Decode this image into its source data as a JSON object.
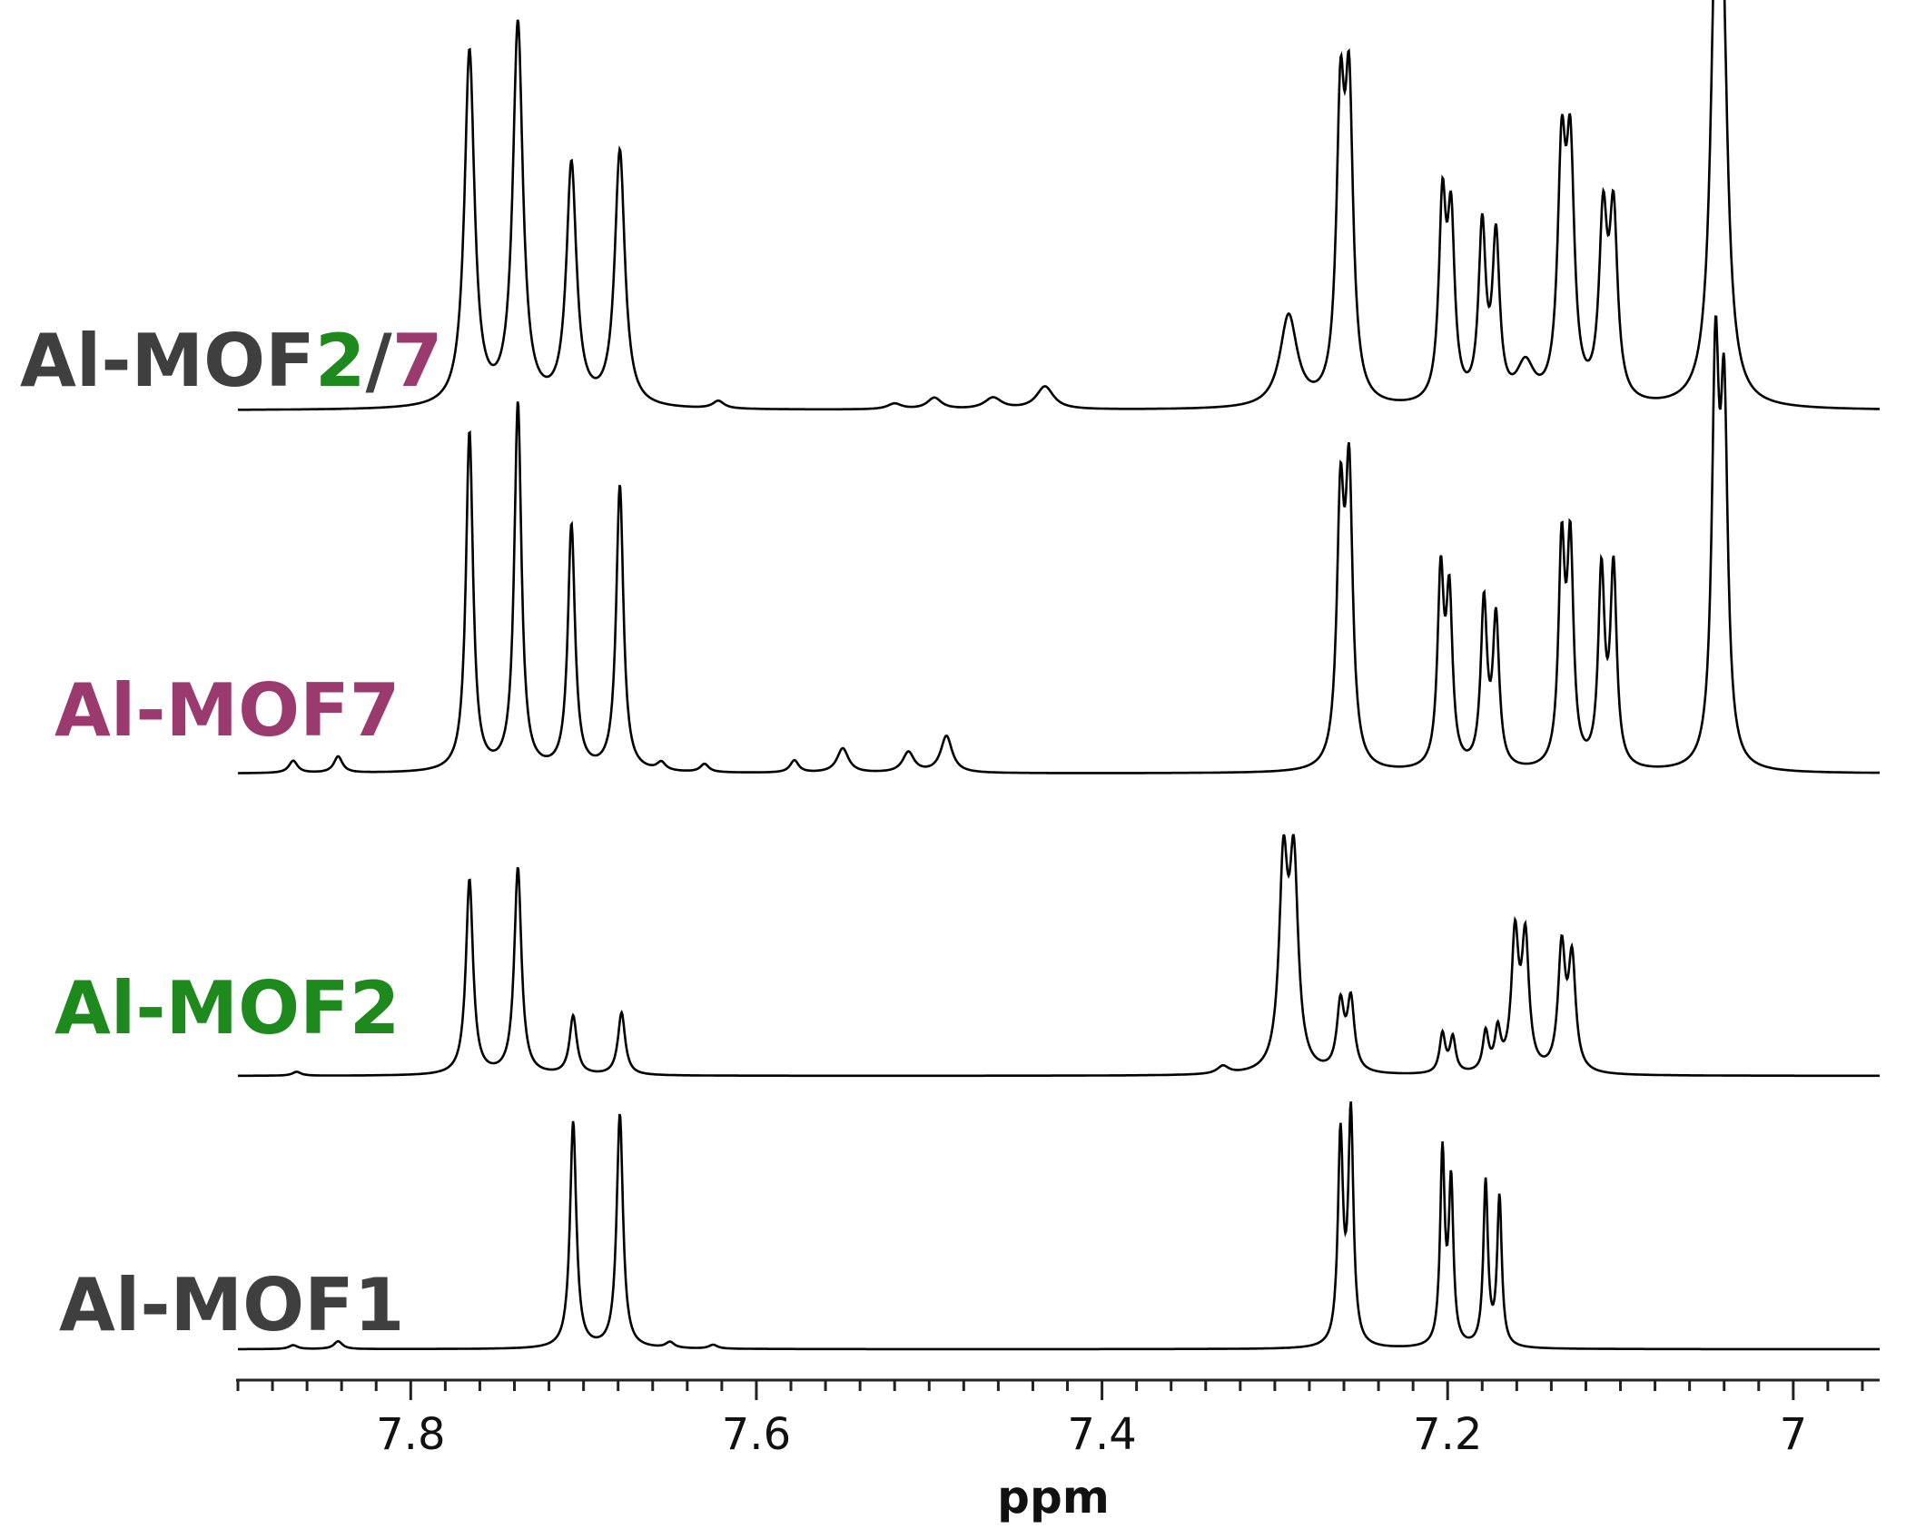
{
  "colors": {
    "dark": "#3f3f3f",
    "green": "#1e8a1e",
    "purple": "#9b3a6e",
    "trace": "#000000"
  },
  "labels": {
    "mof27_prefix": "Al-MOF",
    "mof27_a": "2",
    "mof27_sep": "/",
    "mof27_b": "7",
    "mof7": "Al-MOF7",
    "mof2": "Al-MOF2",
    "mof1": "Al-MOF1"
  },
  "chart_data": {
    "type": "line",
    "title": "",
    "xlabel": "ppm",
    "ylabel": "",
    "xlim": [
      7.9,
      6.95
    ],
    "x_reversed": true,
    "x_ticks": [
      7.8,
      7.6,
      7.4,
      7.2,
      7.0
    ],
    "x_tick_labels": [
      "7.8",
      "7.6",
      "7.4",
      "7.2",
      "7"
    ],
    "grid": false,
    "series": [
      {
        "name": "Al-MOF2/7",
        "color": "#000000",
        "peaks": [
          {
            "ppm": 7.766,
            "h": 0.93,
            "w": 0.0035
          },
          {
            "ppm": 7.738,
            "h": 1.0,
            "w": 0.0035
          },
          {
            "ppm": 7.707,
            "h": 0.63,
            "w": 0.0035
          },
          {
            "ppm": 7.679,
            "h": 0.67,
            "w": 0.0035
          },
          {
            "ppm": 7.622,
            "h": 0.02,
            "w": 0.004
          },
          {
            "ppm": 7.52,
            "h": 0.015,
            "w": 0.005
          },
          {
            "ppm": 7.497,
            "h": 0.03,
            "w": 0.005
          },
          {
            "ppm": 7.463,
            "h": 0.03,
            "w": 0.006
          },
          {
            "ppm": 7.433,
            "h": 0.06,
            "w": 0.006
          },
          {
            "ppm": 7.292,
            "h": 0.24,
            "w": 0.006
          },
          {
            "ppm": 7.262,
            "h": 0.73,
            "w": 0.0028
          },
          {
            "ppm": 7.257,
            "h": 0.75,
            "w": 0.0028
          },
          {
            "ppm": 7.203,
            "h": 0.5,
            "w": 0.0025
          },
          {
            "ppm": 7.198,
            "h": 0.45,
            "w": 0.0025
          },
          {
            "ppm": 7.18,
            "h": 0.45,
            "w": 0.0025
          },
          {
            "ppm": 7.172,
            "h": 0.42,
            "w": 0.0025
          },
          {
            "ppm": 7.155,
            "h": 0.1,
            "w": 0.006
          },
          {
            "ppm": 7.134,
            "h": 0.6,
            "w": 0.0028
          },
          {
            "ppm": 7.129,
            "h": 0.6,
            "w": 0.0028
          },
          {
            "ppm": 7.11,
            "h": 0.46,
            "w": 0.0028
          },
          {
            "ppm": 7.104,
            "h": 0.47,
            "w": 0.0028
          },
          {
            "ppm": 7.045,
            "h": 0.95,
            "w": 0.0035
          },
          {
            "ppm": 7.041,
            "h": 0.88,
            "w": 0.0035
          }
        ]
      },
      {
        "name": "Al-MOF7",
        "color": "#000000",
        "peaks": [
          {
            "ppm": 7.868,
            "h": 0.03,
            "w": 0.003
          },
          {
            "ppm": 7.842,
            "h": 0.04,
            "w": 0.003
          },
          {
            "ppm": 7.766,
            "h": 0.83,
            "w": 0.0025
          },
          {
            "ppm": 7.738,
            "h": 0.9,
            "w": 0.0025
          },
          {
            "ppm": 7.707,
            "h": 0.6,
            "w": 0.0025
          },
          {
            "ppm": 7.679,
            "h": 0.7,
            "w": 0.0025
          },
          {
            "ppm": 7.655,
            "h": 0.02,
            "w": 0.003
          },
          {
            "ppm": 7.63,
            "h": 0.02,
            "w": 0.003
          },
          {
            "ppm": 7.578,
            "h": 0.03,
            "w": 0.003
          },
          {
            "ppm": 7.55,
            "h": 0.06,
            "w": 0.004
          },
          {
            "ppm": 7.512,
            "h": 0.05,
            "w": 0.004
          },
          {
            "ppm": 7.49,
            "h": 0.09,
            "w": 0.004
          },
          {
            "ppm": 7.262,
            "h": 0.62,
            "w": 0.0025
          },
          {
            "ppm": 7.257,
            "h": 0.68,
            "w": 0.0025
          },
          {
            "ppm": 7.204,
            "h": 0.46,
            "w": 0.0022
          },
          {
            "ppm": 7.199,
            "h": 0.4,
            "w": 0.0022
          },
          {
            "ppm": 7.179,
            "h": 0.4,
            "w": 0.0022
          },
          {
            "ppm": 7.172,
            "h": 0.36,
            "w": 0.0022
          },
          {
            "ppm": 7.134,
            "h": 0.52,
            "w": 0.0022
          },
          {
            "ppm": 7.129,
            "h": 0.52,
            "w": 0.0022
          },
          {
            "ppm": 7.111,
            "h": 0.47,
            "w": 0.0022
          },
          {
            "ppm": 7.104,
            "h": 0.48,
            "w": 0.0022
          },
          {
            "ppm": 7.045,
            "h": 0.95,
            "w": 0.0025
          },
          {
            "ppm": 7.04,
            "h": 0.83,
            "w": 0.0025
          }
        ]
      },
      {
        "name": "Al-MOF2",
        "color": "#000000",
        "peaks": [
          {
            "ppm": 7.866,
            "h": 0.01,
            "w": 0.003
          },
          {
            "ppm": 7.766,
            "h": 0.5,
            "w": 0.0025
          },
          {
            "ppm": 7.738,
            "h": 0.53,
            "w": 0.0025
          },
          {
            "ppm": 7.706,
            "h": 0.15,
            "w": 0.0025
          },
          {
            "ppm": 7.678,
            "h": 0.16,
            "w": 0.0025
          },
          {
            "ppm": 7.33,
            "h": 0.02,
            "w": 0.004
          },
          {
            "ppm": 7.295,
            "h": 0.51,
            "w": 0.003
          },
          {
            "ppm": 7.289,
            "h": 0.51,
            "w": 0.003
          },
          {
            "ppm": 7.262,
            "h": 0.17,
            "w": 0.0025
          },
          {
            "ppm": 7.256,
            "h": 0.18,
            "w": 0.0025
          },
          {
            "ppm": 7.203,
            "h": 0.1,
            "w": 0.002
          },
          {
            "ppm": 7.197,
            "h": 0.09,
            "w": 0.002
          },
          {
            "ppm": 7.178,
            "h": 0.1,
            "w": 0.002
          },
          {
            "ppm": 7.171,
            "h": 0.1,
            "w": 0.002
          },
          {
            "ppm": 7.161,
            "h": 0.34,
            "w": 0.0025
          },
          {
            "ppm": 7.155,
            "h": 0.33,
            "w": 0.0025
          },
          {
            "ppm": 7.134,
            "h": 0.31,
            "w": 0.0025
          },
          {
            "ppm": 7.128,
            "h": 0.28,
            "w": 0.0025
          }
        ]
      },
      {
        "name": "Al-MOF1",
        "color": "#000000",
        "peaks": [
          {
            "ppm": 7.868,
            "h": 0.01,
            "w": 0.003
          },
          {
            "ppm": 7.842,
            "h": 0.02,
            "w": 0.003
          },
          {
            "ppm": 7.706,
            "h": 0.58,
            "w": 0.0022
          },
          {
            "ppm": 7.679,
            "h": 0.6,
            "w": 0.0022
          },
          {
            "ppm": 7.65,
            "h": 0.015,
            "w": 0.003
          },
          {
            "ppm": 7.625,
            "h": 0.01,
            "w": 0.003
          },
          {
            "ppm": 7.262,
            "h": 0.53,
            "w": 0.0018
          },
          {
            "ppm": 7.256,
            "h": 0.59,
            "w": 0.0018
          },
          {
            "ppm": 7.203,
            "h": 0.49,
            "w": 0.0016
          },
          {
            "ppm": 7.198,
            "h": 0.41,
            "w": 0.0016
          },
          {
            "ppm": 7.178,
            "h": 0.42,
            "w": 0.0016
          },
          {
            "ppm": 7.17,
            "h": 0.38,
            "w": 0.0016
          }
        ]
      }
    ]
  }
}
